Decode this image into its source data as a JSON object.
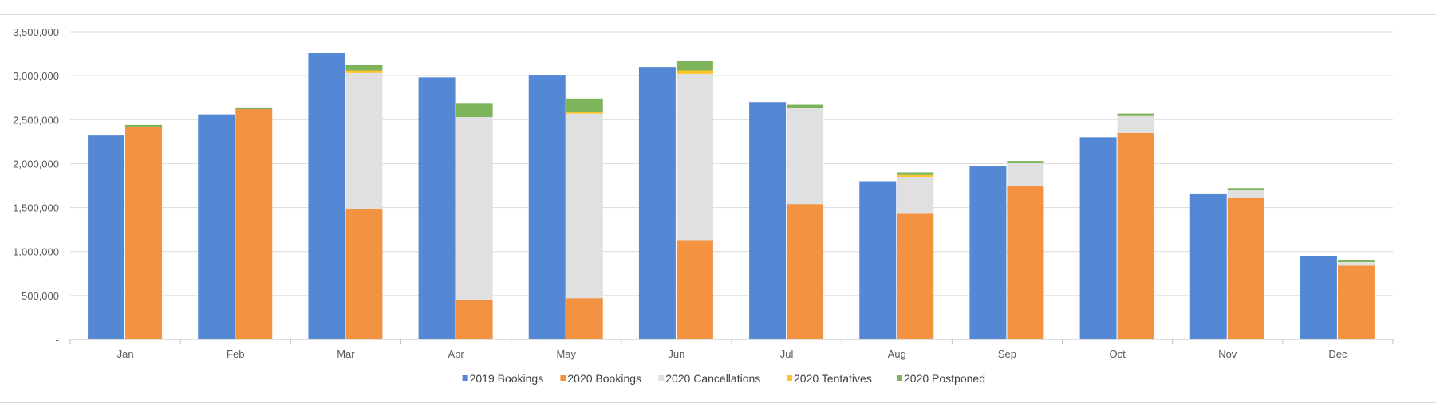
{
  "chart_data": {
    "type": "bar",
    "categories": [
      "Jan",
      "Feb",
      "Mar",
      "Apr",
      "May",
      "Jun",
      "Jul",
      "Aug",
      "Sep",
      "Oct",
      "Nov",
      "Dec"
    ],
    "ylim": [
      0,
      3500000
    ],
    "yticks": [
      0,
      500000,
      1000000,
      1500000,
      2000000,
      2500000,
      3000000,
      3500000
    ],
    "ytick_labels": [
      "-",
      "500,000",
      "1,000,000",
      "1,500,000",
      "2,000,000",
      "2,500,000",
      "3,000,000",
      "3,500,000"
    ],
    "grid": true,
    "legend_position": "bottom",
    "series": [
      {
        "name": "2019 Bookings",
        "color": "#5588d4",
        "stack": "2019",
        "values": [
          2320000,
          2560000,
          3260000,
          2980000,
          3010000,
          3100000,
          2700000,
          1800000,
          1970000,
          2300000,
          1660000,
          950000
        ]
      },
      {
        "name": "2020 Bookings",
        "color": "#f39241",
        "stack": "2020",
        "values": [
          2420000,
          2620000,
          1480000,
          450000,
          470000,
          1130000,
          1540000,
          1430000,
          1750000,
          2350000,
          1610000,
          840000
        ]
      },
      {
        "name": "2020 Cancellations",
        "color": "#e0e0e0",
        "stack": "2020",
        "values": [
          0,
          0,
          1550000,
          2080000,
          2100000,
          1890000,
          1090000,
          420000,
          260000,
          200000,
          90000,
          40000
        ]
      },
      {
        "name": "2020 Tentatives",
        "color": "#fcc428",
        "stack": "2020",
        "values": [
          0,
          0,
          30000,
          0,
          20000,
          40000,
          0,
          20000,
          0,
          0,
          0,
          0
        ]
      },
      {
        "name": "2020 Postponed",
        "color": "#7db45a",
        "stack": "2020",
        "values": [
          20000,
          20000,
          60000,
          160000,
          150000,
          110000,
          40000,
          30000,
          20000,
          20000,
          20000,
          20000
        ]
      }
    ]
  }
}
